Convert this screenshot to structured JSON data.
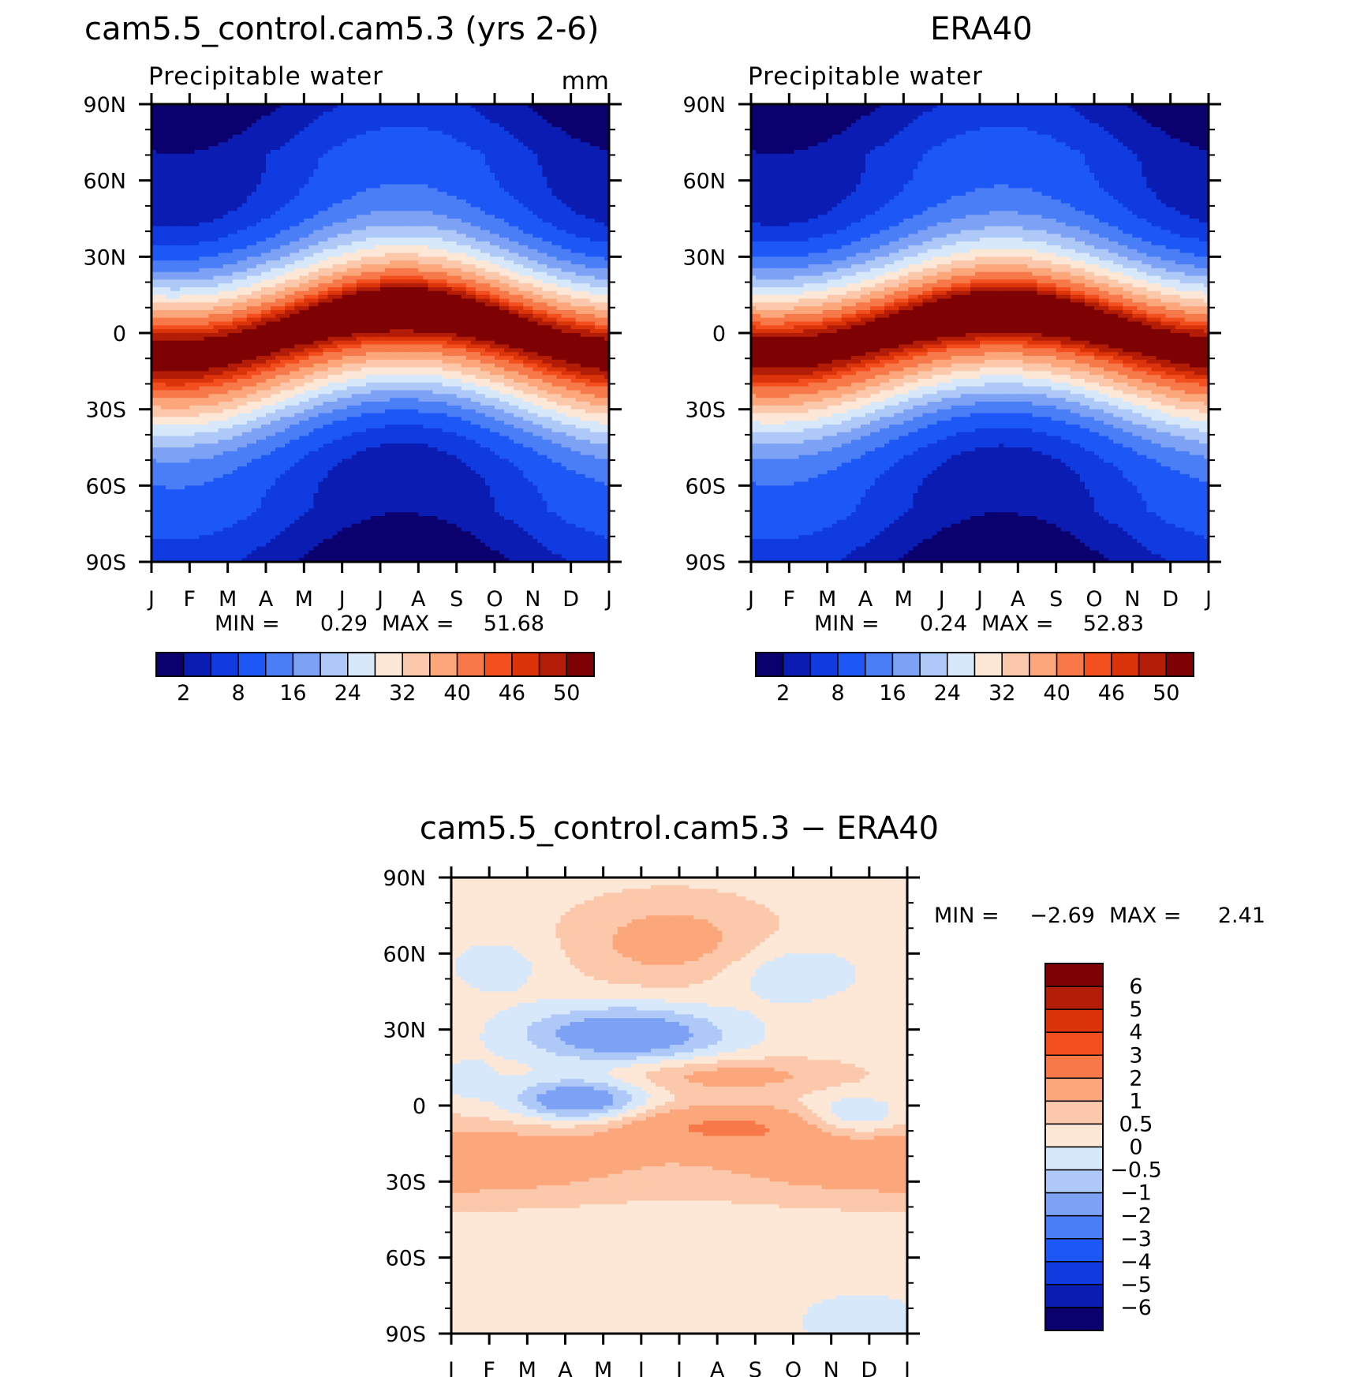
{
  "chart_data": [
    {
      "type": "heatmap",
      "title": "cam5.5_control.cam5.3 (yrs 2-6)",
      "subtitle": "Precipitable water",
      "units": "mm",
      "x_tick_labels": [
        "J",
        "F",
        "M",
        "A",
        "M",
        "J",
        "J",
        "A",
        "S",
        "O",
        "N",
        "D",
        "J"
      ],
      "y_tick_labels": [
        "90N",
        "60N",
        "30N",
        "0",
        "30S",
        "60S",
        "90S"
      ],
      "ylim": [
        -90,
        90
      ],
      "min_label": "MIN =",
      "min_value": "0.29",
      "max_label": "MAX =",
      "max_value": "51.68",
      "min": 0.29,
      "max": 51.68,
      "peak_lat": 8,
      "peak_amp": 6,
      "colorbar": {
        "orientation": "horizontal",
        "levels": [
          2,
          5,
          8,
          12,
          16,
          20,
          24,
          28,
          32,
          36,
          40,
          44,
          46,
          48,
          50
        ],
        "tick_labels": [
          "2",
          "8",
          "16",
          "24",
          "32",
          "40",
          "46",
          "50"
        ],
        "tick_levels": [
          2,
          8,
          16,
          24,
          32,
          40,
          46,
          50
        ],
        "colors": [
          "#0a006e",
          "#0b1cb3",
          "#0f3be0",
          "#1d58f7",
          "#4a7ef6",
          "#7da2f5",
          "#aec8f7",
          "#d8e8fb",
          "#fde8d8",
          "#fcc8ab",
          "#fba77b",
          "#f77848",
          "#f24e1e",
          "#db330a",
          "#b31c06",
          "#7e0204"
        ]
      }
    },
    {
      "type": "heatmap",
      "title": "ERA40",
      "subtitle": "Precipitable water",
      "x_tick_labels": [
        "J",
        "F",
        "M",
        "A",
        "M",
        "J",
        "J",
        "A",
        "S",
        "O",
        "N",
        "D",
        "J"
      ],
      "y_tick_labels": [
        "90N",
        "60N",
        "30N",
        "0",
        "30S",
        "60S",
        "90S"
      ],
      "ylim": [
        -90,
        90
      ],
      "min_label": "MIN =",
      "min_value": "0.24",
      "max_label": "MAX =",
      "max_value": "52.83",
      "min": 0.24,
      "max": 52.83,
      "peak_lat": 7,
      "peak_amp": 6,
      "colorbar": {
        "orientation": "horizontal",
        "levels": [
          2,
          5,
          8,
          12,
          16,
          20,
          24,
          28,
          32,
          36,
          40,
          44,
          46,
          48,
          50
        ],
        "tick_labels": [
          "2",
          "8",
          "16",
          "24",
          "32",
          "40",
          "46",
          "50"
        ],
        "tick_levels": [
          2,
          8,
          16,
          24,
          32,
          40,
          46,
          50
        ],
        "colors": [
          "#0a006e",
          "#0b1cb3",
          "#0f3be0",
          "#1d58f7",
          "#4a7ef6",
          "#7da2f5",
          "#aec8f7",
          "#d8e8fb",
          "#fde8d8",
          "#fcc8ab",
          "#fba77b",
          "#f77848",
          "#f24e1e",
          "#db330a",
          "#b31c06",
          "#7e0204"
        ]
      }
    },
    {
      "type": "heatmap",
      "title": "cam5.5_control.cam5.3 − ERA40",
      "x_tick_labels": [
        "J",
        "F",
        "M",
        "A",
        "M",
        "J",
        "J",
        "A",
        "S",
        "O",
        "N",
        "D",
        "J"
      ],
      "y_tick_labels": [
        "90N",
        "60N",
        "30N",
        "0",
        "30S",
        "60S",
        "90S"
      ],
      "ylim": [
        -90,
        90
      ],
      "min_label": "MIN =",
      "min_value": "−2.69",
      "max_label": "MAX =",
      "max_value": "2.41",
      "min": -2.69,
      "max": 2.41,
      "colorbar": {
        "orientation": "vertical",
        "levels": [
          -6,
          -5,
          -4,
          -3,
          -2,
          -1,
          -0.5,
          0,
          0.5,
          1,
          2,
          3,
          4,
          5,
          6
        ],
        "tick_labels": [
          "6",
          "5",
          "4",
          "3",
          "2",
          "1",
          "0.5",
          "0",
          "−0.5",
          "−1",
          "−2",
          "−3",
          "−4",
          "−5",
          "−6"
        ],
        "tick_levels": [
          6,
          5,
          4,
          3,
          2,
          1,
          0.5,
          0,
          -0.5,
          -1,
          -2,
          -3,
          -4,
          -5,
          -6
        ],
        "colors": [
          "#0a006e",
          "#0b1cb3",
          "#0f3be0",
          "#1d58f7",
          "#4a7ef6",
          "#7da2f5",
          "#aec8f7",
          "#d8e8fb",
          "#fde8d8",
          "#fcc8ab",
          "#fba77b",
          "#f77848",
          "#f24e1e",
          "#db330a",
          "#b31c06",
          "#7e0204"
        ]
      }
    }
  ]
}
